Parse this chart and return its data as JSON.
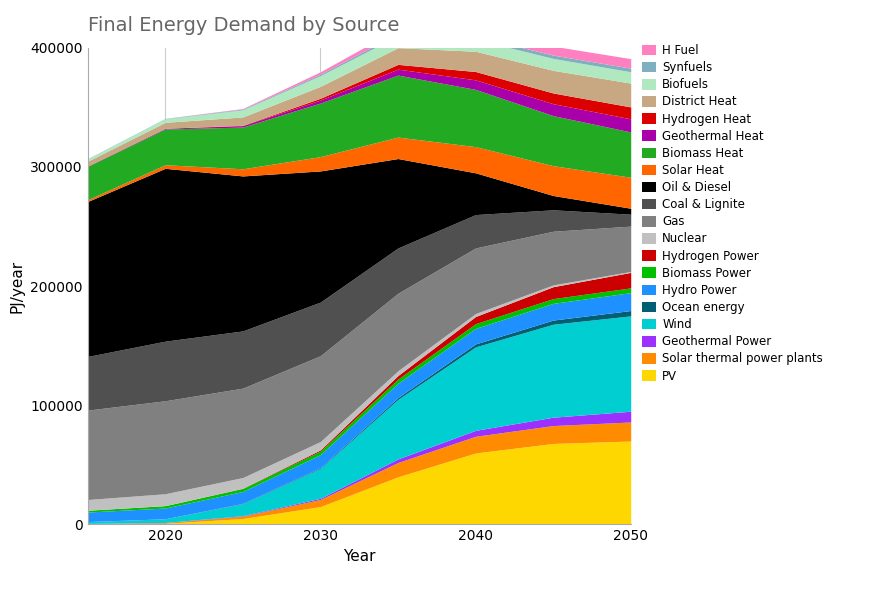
{
  "years": [
    2015,
    2020,
    2025,
    2030,
    2035,
    2040,
    2045,
    2050
  ],
  "title": "Final Energy Demand by Source",
  "xlabel": "Year",
  "ylabel": "PJ/year",
  "ylim": [
    0,
    400000
  ],
  "yticks": [
    0,
    100000,
    200000,
    300000,
    400000
  ],
  "xticks": [
    2020,
    2030,
    2040,
    2050
  ],
  "sources": [
    {
      "name": "PV",
      "color": "#FFD700",
      "values": [
        500,
        1000,
        5000,
        15000,
        40000,
        60000,
        68000,
        70000
      ]
    },
    {
      "name": "Solar thermal power plants",
      "color": "#FF8C00",
      "values": [
        300,
        500,
        2000,
        6000,
        12000,
        14000,
        15000,
        16000
      ]
    },
    {
      "name": "Geothermal Power",
      "color": "#9B30FF",
      "values": [
        100,
        200,
        400,
        1000,
        3000,
        5000,
        7000,
        9000
      ]
    },
    {
      "name": "Wind",
      "color": "#00CED1",
      "values": [
        1500,
        3000,
        10000,
        25000,
        50000,
        70000,
        78000,
        80000
      ]
    },
    {
      "name": "Ocean energy",
      "color": "#005F73",
      "values": [
        50,
        100,
        300,
        600,
        1500,
        2500,
        3500,
        4500
      ]
    },
    {
      "name": "Hydro Power",
      "color": "#1E90FF",
      "values": [
        8000,
        9000,
        10000,
        11000,
        12000,
        13000,
        14000,
        15000
      ]
    },
    {
      "name": "Biomass Power",
      "color": "#00C000",
      "values": [
        1500,
        2000,
        2500,
        3000,
        3500,
        4000,
        4000,
        4000
      ]
    },
    {
      "name": "Hydrogen Power",
      "color": "#CC0000",
      "values": [
        0,
        0,
        200,
        1000,
        3000,
        6000,
        10000,
        13000
      ]
    },
    {
      "name": "Nuclear",
      "color": "#C0C0C0",
      "values": [
        9000,
        10000,
        9000,
        7000,
        4000,
        2500,
        1500,
        800
      ]
    },
    {
      "name": "Gas",
      "color": "#808080",
      "values": [
        75000,
        78000,
        75000,
        72000,
        65000,
        55000,
        45000,
        38000
      ]
    },
    {
      "name": "Coal & Lignite",
      "color": "#505050",
      "values": [
        45000,
        50000,
        48000,
        45000,
        38000,
        28000,
        18000,
        10000
      ]
    },
    {
      "name": "Oil & Diesel",
      "color": "#000000",
      "values": [
        130000,
        145000,
        130000,
        110000,
        75000,
        35000,
        12000,
        5000
      ]
    },
    {
      "name": "Solar Heat",
      "color": "#FF6600",
      "values": [
        1500,
        3000,
        6000,
        12000,
        18000,
        22000,
        25000,
        26000
      ]
    },
    {
      "name": "Biomass Heat",
      "color": "#22AA22",
      "values": [
        28000,
        30000,
        35000,
        45000,
        52000,
        48000,
        42000,
        38000
      ]
    },
    {
      "name": "Geothermal Heat",
      "color": "#AA00AA",
      "values": [
        300,
        600,
        1200,
        2500,
        5000,
        8000,
        10000,
        11000
      ]
    },
    {
      "name": "Hydrogen Heat",
      "color": "#DD0000",
      "values": [
        0,
        0,
        300,
        1500,
        4000,
        7000,
        9000,
        10000
      ]
    },
    {
      "name": "District Heat",
      "color": "#C8A882",
      "values": [
        4000,
        5000,
        7000,
        10000,
        14000,
        17000,
        19000,
        20000
      ]
    },
    {
      "name": "Biofuels",
      "color": "#B0E8C0",
      "values": [
        2000,
        3000,
        6000,
        9000,
        10000,
        10000,
        10000,
        9500
      ]
    },
    {
      "name": "Synfuels",
      "color": "#7EB0C0",
      "values": [
        200,
        300,
        600,
        1200,
        2000,
        2500,
        2800,
        3000
      ]
    },
    {
      "name": "H Fuel",
      "color": "#FF80C0",
      "values": [
        0,
        0,
        500,
        2000,
        4000,
        6000,
        7500,
        8000
      ]
    }
  ],
  "background_color": "#ffffff",
  "title_fontsize": 14,
  "title_color": "#666666",
  "axis_fontsize": 11,
  "tick_fontsize": 10
}
